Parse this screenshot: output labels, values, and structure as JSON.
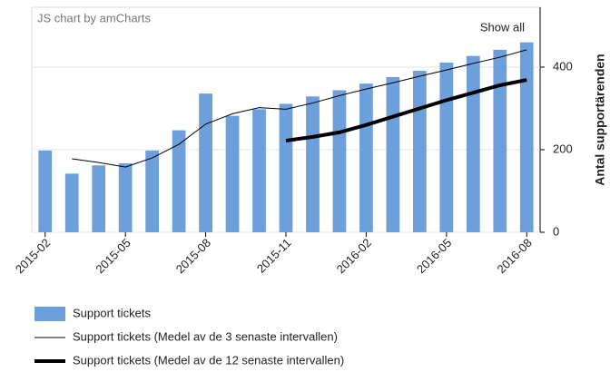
{
  "chart_data": {
    "type": "bar",
    "credit": "JS chart by amCharts",
    "button": "Show all",
    "ylabel": "Antal supportärenden",
    "categories": [
      "2015-02",
      null,
      null,
      "2015-05",
      null,
      null,
      "2015-08",
      null,
      null,
      "2015-11",
      null,
      null,
      "2016-02",
      null,
      null,
      "2016-05",
      null,
      null,
      "2016-08"
    ],
    "series": [
      {
        "name": "Support tickets",
        "type": "bar",
        "color": "#6c9fdb",
        "values": [
          198,
          142,
          162,
          167,
          198,
          247,
          336,
          282,
          298,
          311,
          329,
          344,
          360,
          376,
          391,
          411,
          427,
          442,
          460
        ]
      },
      {
        "name": "Support tickets (Medel av de 3 senaste intervallen)",
        "type": "line",
        "color": "#000000",
        "width": 1,
        "values": [
          null,
          178,
          169,
          158,
          180,
          213,
          262,
          287,
          302,
          298,
          313,
          331,
          347,
          362,
          378,
          393,
          409,
          424,
          442
        ]
      },
      {
        "name": "Support tickets (Medel av de 12 senaste intervallen)",
        "type": "line",
        "color": "#000000",
        "width": 4,
        "values": [
          null,
          null,
          null,
          null,
          null,
          null,
          null,
          null,
          null,
          222,
          231,
          242,
          260,
          280,
          300,
          320,
          338,
          356,
          369
        ]
      }
    ],
    "ylim": [
      0,
      545
    ],
    "yticks": [
      0,
      200,
      400
    ],
    "grid": true
  }
}
